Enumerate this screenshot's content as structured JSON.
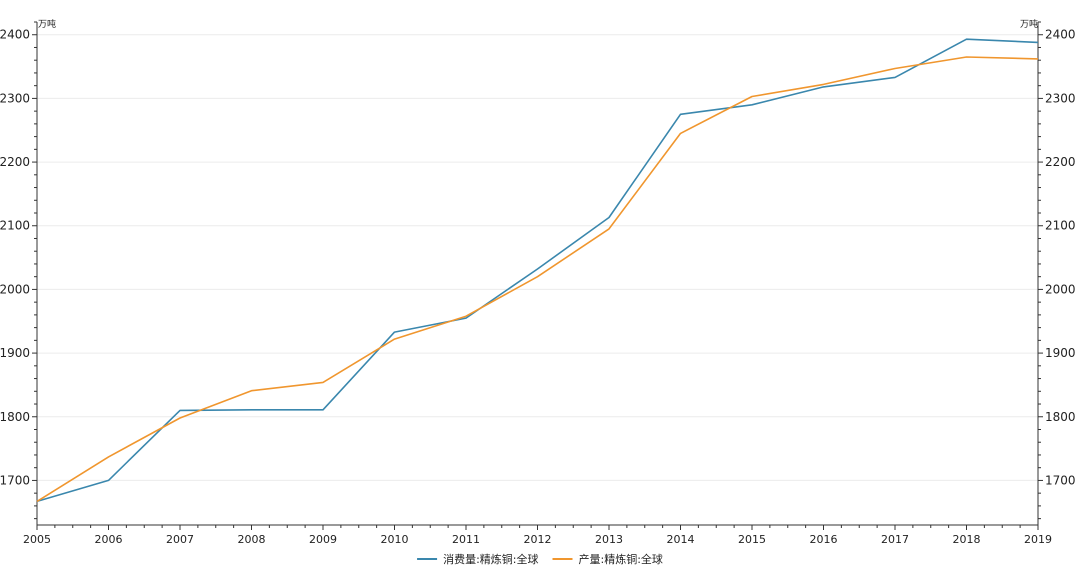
{
  "chart_data": {
    "type": "line",
    "x": [
      2005,
      2006,
      2007,
      2008,
      2009,
      2010,
      2011,
      2012,
      2013,
      2014,
      2015,
      2016,
      2017,
      2018,
      2019
    ],
    "xticks": [
      "2005",
      "2006",
      "2007",
      "2008",
      "2009",
      "2010",
      "2011",
      "2012",
      "2013",
      "2014",
      "2015",
      "2016",
      "2017",
      "2018",
      "2019"
    ],
    "ylim": [
      1630,
      2420
    ],
    "yticks": [
      1700,
      1800,
      1900,
      2000,
      2100,
      2200,
      2300,
      2400
    ],
    "ylabel_left": "万吨",
    "ylabel_right": "万吨",
    "grid": true,
    "legend_position": "bottom-center",
    "series": [
      {
        "name": "消费量:精炼铜:全球",
        "color": "#3a87ad",
        "values": [
          1667,
          1700,
          1810,
          1811,
          1811,
          1933,
          1955,
          2032,
          2113,
          2275,
          2290,
          2318,
          2333,
          2393,
          2388
        ]
      },
      {
        "name": "产量:精炼铜:全球",
        "color": "#f0962e",
        "values": [
          1667,
          1737,
          1798,
          1841,
          1854,
          1922,
          1958,
          2020,
          2095,
          2245,
          2303,
          2322,
          2347,
          2365,
          2362
        ]
      }
    ]
  }
}
